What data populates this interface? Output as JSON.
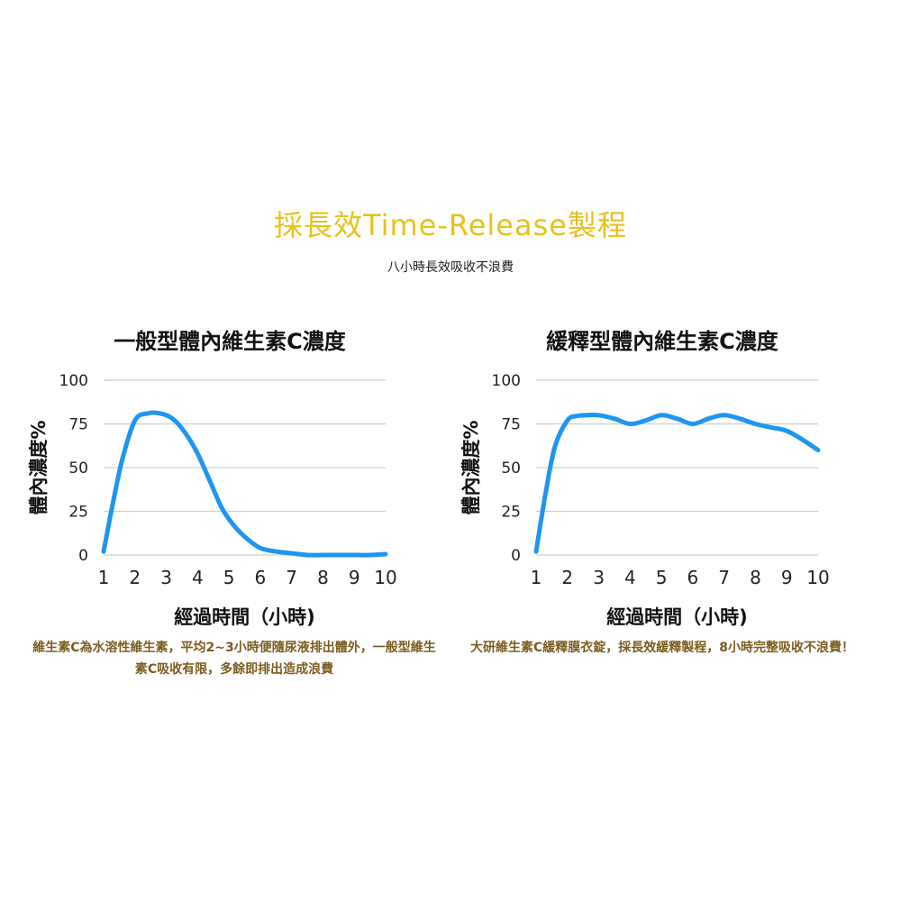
{
  "header": {
    "title": "採長效Time-Release製程",
    "subtitle": "八小時長效吸收不浪費",
    "title_color": "#e8c21a"
  },
  "colors": {
    "line": "#1e96f0",
    "grid": "#cfcfcf",
    "caption": "#7a5c1e"
  },
  "chart_data": [
    {
      "type": "line",
      "title": "一般型體內維生素C濃度",
      "xlabel": "經過時間（小時)",
      "ylabel": "體內濃度%",
      "xlim": [
        1,
        10
      ],
      "ylim": [
        0,
        100
      ],
      "xticks": [
        "1",
        "2",
        "3",
        "4",
        "5",
        "6",
        "7",
        "8",
        "9",
        "10"
      ],
      "yticks": [
        "0",
        "25",
        "50",
        "75",
        "100"
      ],
      "grid": true,
      "series": [
        {
          "x": [
            1,
            1.3,
            1.6,
            2,
            2.4,
            2.8,
            3.2,
            3.6,
            4,
            4.4,
            4.8,
            5.2,
            5.6,
            6,
            6.5,
            7,
            7.5,
            8,
            8.5,
            9,
            9.5,
            10
          ],
          "values": [
            2,
            30,
            55,
            77,
            81,
            81,
            78,
            70,
            58,
            42,
            26,
            16,
            9,
            4,
            2,
            1,
            0,
            0,
            0,
            0,
            0,
            0.5
          ]
        }
      ],
      "caption": "維生素C為水溶性維生素，平均2~3小時便隨尿液排出體外，一般型維生素C吸收有限，多餘即排出造成浪費"
    },
    {
      "type": "line",
      "title": "緩釋型體內維生素C濃度",
      "xlabel": "經過時間（小時)",
      "ylabel": "體內濃度%",
      "xlim": [
        1,
        10
      ],
      "ylim": [
        0,
        100
      ],
      "xticks": [
        "1",
        "2",
        "3",
        "4",
        "5",
        "6",
        "7",
        "8",
        "9",
        "10"
      ],
      "yticks": [
        "0",
        "25",
        "50",
        "75",
        "100"
      ],
      "grid": true,
      "series": [
        {
          "x": [
            1,
            1.3,
            1.6,
            2,
            2.3,
            2.6,
            3,
            3.5,
            4,
            4.5,
            5,
            5.5,
            6,
            6.5,
            7,
            7.5,
            8,
            8.5,
            9,
            9.5,
            10
          ],
          "values": [
            2,
            35,
            62,
            77,
            79.5,
            80,
            80,
            78,
            75,
            77,
            80,
            78,
            75,
            78,
            80,
            78,
            75,
            73,
            71,
            66,
            60
          ]
        }
      ],
      "caption": "大研維生素C緩釋膜衣錠，採長效緩釋製程，8小時完整吸收不浪費！"
    }
  ]
}
